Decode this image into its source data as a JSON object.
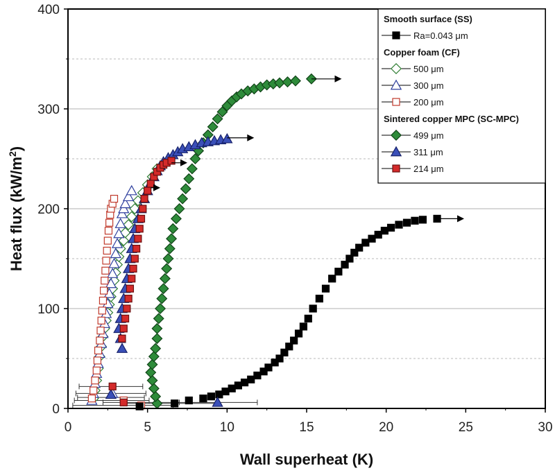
{
  "chart_data": {
    "type": "scatter",
    "title": "",
    "xlabel": "Wall superheat (K)",
    "ylabel_main": "Heat flux (kW/m",
    "ylabel_sup": "2",
    "ylabel_end": ")",
    "xlim": [
      0,
      30
    ],
    "ylim": [
      0,
      400
    ],
    "xticks": [
      0,
      5,
      10,
      15,
      20,
      25,
      30
    ],
    "yticks": [
      0,
      100,
      200,
      300,
      400
    ],
    "xtick_labels": [
      "0",
      "5",
      "10",
      "15",
      "20",
      "25",
      "30"
    ],
    "ytick_labels": [
      "0",
      "100",
      "200",
      "300",
      "400"
    ],
    "grid_major_y": [
      100,
      200,
      300
    ],
    "grid_minor_y": [
      50,
      150,
      250,
      350
    ],
    "legend": {
      "placement": "top-right",
      "groups": [
        {
          "heading": "Smooth surface (SS)",
          "entries": [
            {
              "series": 0,
              "label": "Ra=0.043 μm"
            }
          ]
        },
        {
          "heading": "Copper foam (CF)",
          "entries": [
            {
              "series": 1,
              "label": "500 μm"
            },
            {
              "series": 2,
              "label": "300 μm"
            },
            {
              "series": 3,
              "label": "200 μm"
            }
          ]
        },
        {
          "heading": "Sintered copper MPC (SC-MPC)",
          "entries": [
            {
              "series": 4,
              "label": "499 μm"
            },
            {
              "series": 5,
              "label": "311 μm"
            },
            {
              "series": 6,
              "label": "214 μm"
            }
          ]
        }
      ]
    },
    "series": [
      {
        "name": "SS Ra=0.043 μm",
        "marker": "square",
        "fill": "#000000",
        "stroke": "#000000",
        "x": [
          4.5,
          6.7,
          7.6,
          8.5,
          9.0,
          9.5,
          9.9,
          10.3,
          10.7,
          11.1,
          11.5,
          11.9,
          12.3,
          12.6,
          13.0,
          13.3,
          13.6,
          13.9,
          14.2,
          14.5,
          14.8,
          15.1,
          15.4,
          15.8,
          16.2,
          16.6,
          17.0,
          17.4,
          17.7,
          18.0,
          18.3,
          18.7,
          19.1,
          19.5,
          19.9,
          20.3,
          20.8,
          21.3,
          21.8,
          22.3,
          23.2
        ],
        "y": [
          2,
          5,
          8,
          10,
          12,
          14,
          17,
          20,
          23,
          26,
          29,
          33,
          37,
          41,
          46,
          50,
          56,
          62,
          68,
          75,
          82,
          90,
          100,
          110,
          120,
          130,
          137,
          144,
          150,
          156,
          161,
          166,
          170,
          174,
          178,
          181,
          184,
          186,
          188,
          189,
          190
        ]
      },
      {
        "name": "CF 500 μm",
        "marker": "diamond",
        "fill": "#ffffff",
        "stroke": "#2e7d32",
        "x": [
          1.6,
          1.7,
          1.8,
          1.9,
          2.0,
          2.1,
          2.2,
          2.3,
          2.4,
          2.5,
          2.6,
          2.7,
          2.8,
          2.9,
          3.0,
          3.1,
          3.2,
          3.3,
          3.5,
          3.6,
          3.8,
          4.0,
          4.2,
          4.4,
          4.7,
          5.0,
          5.3,
          5.6,
          6.0
        ],
        "y": [
          10,
          18,
          28,
          40,
          52,
          62,
          72,
          80,
          88,
          96,
          104,
          112,
          120,
          128,
          136,
          144,
          152,
          160,
          168,
          176,
          184,
          192,
          200,
          208,
          216,
          224,
          232,
          240,
          244
        ]
      },
      {
        "name": "CF 300 μm",
        "marker": "triangle",
        "fill": "#ffffff",
        "stroke": "#2e3f9e",
        "x": [
          1.5,
          1.6,
          1.7,
          1.8,
          1.9,
          2.0,
          2.1,
          2.2,
          2.3,
          2.4,
          2.5,
          2.6,
          2.7,
          2.8,
          2.9,
          3.0,
          3.1,
          3.2,
          3.3,
          3.4,
          3.5,
          3.6,
          3.8,
          4.0,
          2.8
        ],
        "y": [
          8,
          15,
          25,
          35,
          45,
          55,
          65,
          75,
          85,
          95,
          105,
          115,
          125,
          135,
          145,
          155,
          165,
          175,
          185,
          195,
          200,
          205,
          212,
          218,
          15
        ]
      },
      {
        "name": "CF 200 μm",
        "marker": "square",
        "fill": "#ffffff",
        "stroke": "#c0392b",
        "x": [
          1.5,
          1.6,
          1.7,
          1.8,
          1.85,
          1.9,
          2.0,
          2.05,
          2.1,
          2.15,
          2.2,
          2.25,
          2.3,
          2.35,
          2.4,
          2.45,
          2.5,
          2.55,
          2.6,
          2.65,
          2.7,
          2.8,
          2.9,
          3.5,
          4.6
        ],
        "y": [
          10,
          18,
          28,
          38,
          48,
          58,
          68,
          78,
          88,
          98,
          108,
          118,
          128,
          138,
          148,
          158,
          168,
          178,
          186,
          194,
          200,
          205,
          210,
          8,
          3
        ]
      },
      {
        "name": "SC-MPC 499 μm",
        "marker": "diamond",
        "fill": "#2e8b3a",
        "stroke": "#114418",
        "x": [
          5.6,
          5.5,
          5.4,
          5.3,
          5.2,
          5.3,
          5.4,
          5.5,
          5.6,
          5.6,
          5.7,
          5.8,
          5.9,
          6.0,
          6.1,
          6.2,
          6.3,
          6.4,
          6.5,
          6.6,
          6.8,
          7.0,
          7.2,
          7.4,
          7.6,
          7.8,
          8.0,
          8.2,
          8.5,
          8.8,
          9.1,
          9.4,
          9.7,
          10.0,
          10.3,
          10.6,
          10.9,
          11.3,
          11.7,
          12.1,
          12.5,
          12.9,
          13.3,
          13.8,
          14.3,
          15.3
        ],
        "y": [
          5,
          12,
          20,
          28,
          36,
          44,
          52,
          60,
          70,
          80,
          90,
          100,
          110,
          120,
          130,
          140,
          150,
          160,
          170,
          180,
          190,
          200,
          210,
          220,
          230,
          240,
          250,
          258,
          266,
          274,
          282,
          290,
          297,
          303,
          308,
          312,
          315,
          318,
          320,
          322,
          324,
          325,
          326,
          327,
          328,
          330
        ]
      },
      {
        "name": "SC-MPC 311 μm",
        "marker": "triangle",
        "fill": "#3a4fb8",
        "stroke": "#17226a",
        "x": [
          3.4,
          3.3,
          3.2,
          3.3,
          3.4,
          3.5,
          3.6,
          3.7,
          3.8,
          3.9,
          4.0,
          4.1,
          4.2,
          4.4,
          4.6,
          4.8,
          5.0,
          5.2,
          5.4,
          5.6,
          5.8,
          6.0,
          6.3,
          6.6,
          6.9,
          7.2,
          7.6,
          8.0,
          8.4,
          8.8,
          9.2,
          9.6,
          10.0,
          2.7,
          9.4
        ],
        "y": [
          60,
          70,
          80,
          90,
          100,
          110,
          120,
          130,
          140,
          150,
          160,
          170,
          180,
          190,
          200,
          210,
          218,
          226,
          232,
          238,
          243,
          247,
          251,
          254,
          257,
          260,
          262,
          264,
          266,
          267,
          268,
          269,
          270,
          14,
          6
        ]
      },
      {
        "name": "SC-MPC 214 μm",
        "marker": "square",
        "fill": "#d42a2a",
        "stroke": "#6a1010",
        "x": [
          2.8,
          3.5,
          3.4,
          3.5,
          3.6,
          3.7,
          3.8,
          3.9,
          4.0,
          4.1,
          4.2,
          4.3,
          4.4,
          4.5,
          4.6,
          4.7,
          4.8,
          5.0,
          5.2,
          5.4,
          5.6,
          5.8,
          6.0,
          6.2,
          6.5
        ],
        "y": [
          22,
          6,
          70,
          80,
          90,
          100,
          110,
          120,
          130,
          140,
          150,
          160,
          170,
          180,
          190,
          200,
          210,
          218,
          225,
          232,
          237,
          241,
          244,
          246,
          248
        ]
      }
    ],
    "arrows": [
      {
        "series": 0,
        "x": [
          23.2,
          24.9
        ],
        "y": 190
      },
      {
        "series": 4,
        "x": [
          15.3,
          17.2
        ],
        "y": 330
      },
      {
        "series": 5,
        "x": [
          10.0,
          11.7
        ],
        "y": 271
      },
      {
        "series": 6,
        "x": [
          6.5,
          7.5
        ],
        "y": 246
      },
      {
        "series": 1,
        "x": [
          5.2,
          5.8
        ],
        "y": 221
      }
    ],
    "error_bars": [
      {
        "x": 3.2,
        "y": 22,
        "xmin": 0.7,
        "xmax": 4.7
      },
      {
        "x": 3.0,
        "y": 15,
        "xmin": 0.5,
        "xmax": 4.9
      },
      {
        "x": 3.3,
        "y": 11,
        "xmin": 0.6,
        "xmax": 4.8
      },
      {
        "x": 2.8,
        "y": 8,
        "xmin": 0.4,
        "xmax": 5.1
      },
      {
        "x": 4.6,
        "y": 6,
        "xmin": 2.2,
        "xmax": 7.0
      },
      {
        "x": 6.8,
        "y": 5,
        "xmin": 3.5,
        "xmax": 9.5
      },
      {
        "x": 9.4,
        "y": 6,
        "xmin": 6.8,
        "xmax": 11.9
      },
      {
        "x": 3.5,
        "y": 3,
        "xmin": 0.3,
        "xmax": 6.6
      }
    ]
  }
}
